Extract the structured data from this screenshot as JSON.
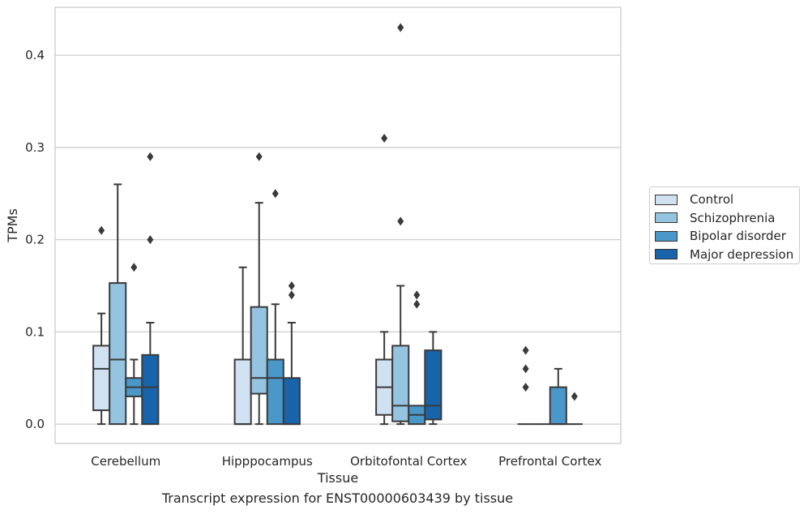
{
  "chart_data": {
    "type": "box",
    "title": "",
    "caption": "Transcript expression for ENST00000603439 by tissue",
    "xlabel": "Tissue",
    "ylabel": "TPMs",
    "ylim": [
      -0.021,
      0.452
    ],
    "yticks": [
      0.0,
      0.1,
      0.2,
      0.3,
      0.4
    ],
    "ytick_labels": [
      "0.0",
      "0.1",
      "0.2",
      "0.3",
      "0.4"
    ],
    "grid": true,
    "legend_position": "right",
    "categories": [
      "Cerebellum",
      "Hipppocampus",
      "Orbitofontal Cortex",
      "Prefrontal Cortex"
    ],
    "series": [
      {
        "name": "Control",
        "color": "#d0e1f2",
        "boxes": [
          {
            "q1": 0.015,
            "median": 0.06,
            "q3": 0.085,
            "whisker_low": 0.0,
            "whisker_high": 0.12,
            "outliers": [
              0.21
            ]
          },
          {
            "q1": 0.0,
            "median": 0.0,
            "q3": 0.07,
            "whisker_low": 0.0,
            "whisker_high": 0.17,
            "outliers": []
          },
          {
            "q1": 0.01,
            "median": 0.04,
            "q3": 0.07,
            "whisker_low": 0.0,
            "whisker_high": 0.1,
            "outliers": [
              0.31
            ]
          },
          {
            "q1": 0.0,
            "median": 0.0,
            "q3": 0.0,
            "whisker_low": 0.0,
            "whisker_high": 0.0,
            "outliers": [
              0.04,
              0.06,
              0.08
            ]
          }
        ]
      },
      {
        "name": "Schizophrenia",
        "color": "#94c4df",
        "boxes": [
          {
            "q1": 0.0,
            "median": 0.07,
            "q3": 0.153,
            "whisker_low": 0.0,
            "whisker_high": 0.26,
            "outliers": []
          },
          {
            "q1": 0.033,
            "median": 0.05,
            "q3": 0.127,
            "whisker_low": 0.0,
            "whisker_high": 0.24,
            "outliers": [
              0.29
            ]
          },
          {
            "q1": 0.003,
            "median": 0.02,
            "q3": 0.085,
            "whisker_low": 0.0,
            "whisker_high": 0.15,
            "outliers": [
              0.22,
              0.43
            ]
          },
          {
            "q1": 0.0,
            "median": 0.0,
            "q3": 0.0,
            "whisker_low": 0.0,
            "whisker_high": 0.0,
            "outliers": []
          }
        ]
      },
      {
        "name": "Bipolar disorder",
        "color": "#4a98c9",
        "boxes": [
          {
            "q1": 0.03,
            "median": 0.04,
            "q3": 0.05,
            "whisker_low": 0.0,
            "whisker_high": 0.07,
            "outliers": [
              0.17
            ]
          },
          {
            "q1": 0.0,
            "median": 0.05,
            "q3": 0.07,
            "whisker_low": 0.0,
            "whisker_high": 0.13,
            "outliers": [
              0.25
            ]
          },
          {
            "q1": 0.0,
            "median": 0.01,
            "q3": 0.02,
            "whisker_low": 0.0,
            "whisker_high": 0.02,
            "outliers": [
              0.13,
              0.14
            ]
          },
          {
            "q1": 0.0,
            "median": 0.0,
            "q3": 0.04,
            "whisker_low": 0.0,
            "whisker_high": 0.06,
            "outliers": []
          }
        ]
      },
      {
        "name": "Major depression",
        "color": "#1764ab",
        "boxes": [
          {
            "q1": 0.0,
            "median": 0.04,
            "q3": 0.075,
            "whisker_low": 0.0,
            "whisker_high": 0.11,
            "outliers": [
              0.2,
              0.29
            ]
          },
          {
            "q1": 0.0,
            "median": 0.0,
            "q3": 0.05,
            "whisker_low": 0.0,
            "whisker_high": 0.11,
            "outliers": [
              0.14,
              0.15
            ]
          },
          {
            "q1": 0.005,
            "median": 0.02,
            "q3": 0.08,
            "whisker_low": 0.0,
            "whisker_high": 0.1,
            "outliers": []
          },
          {
            "q1": 0.0,
            "median": 0.0,
            "q3": 0.0,
            "whisker_low": 0.0,
            "whisker_high": 0.0,
            "outliers": [
              0.03
            ]
          }
        ]
      }
    ]
  }
}
